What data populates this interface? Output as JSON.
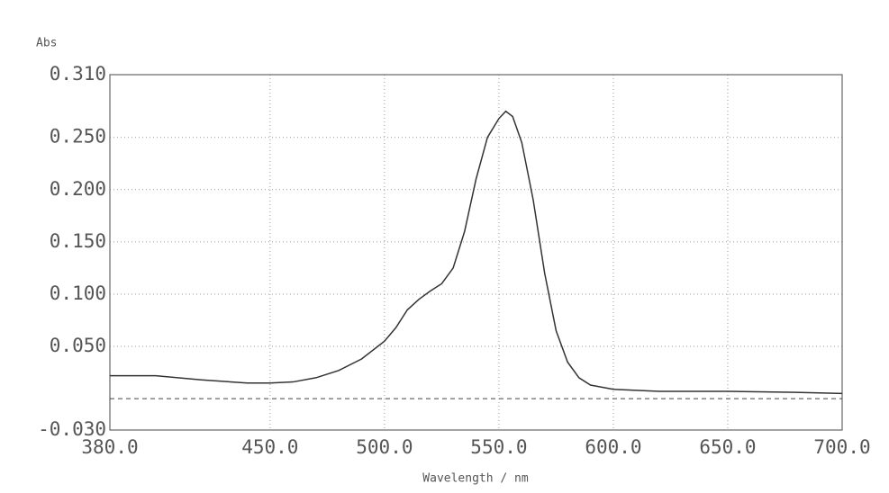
{
  "chart_data": {
    "type": "line",
    "y_label": "Abs",
    "x_label": "Wavelength / nm",
    "xlim": [
      380,
      700
    ],
    "xticks": [
      {
        "value": 380,
        "label": "380.0"
      },
      {
        "value": 450,
        "label": "450.0"
      },
      {
        "value": 500,
        "label": "500.0"
      },
      {
        "value": 550,
        "label": "550.0"
      },
      {
        "value": 600,
        "label": "600.0"
      },
      {
        "value": 650,
        "label": "650.0"
      },
      {
        "value": 700,
        "label": "700.0"
      }
    ],
    "ylim": [
      -0.03,
      0.31
    ],
    "yticks": [
      {
        "value": -0.03,
        "label": "-0.030"
      },
      {
        "value": 0.05,
        "label": "0.050"
      },
      {
        "value": 0.1,
        "label": "0.100"
      },
      {
        "value": 0.15,
        "label": "0.150"
      },
      {
        "value": 0.2,
        "label": "0.200"
      },
      {
        "value": 0.25,
        "label": "0.250"
      },
      {
        "value": 0.31,
        "label": "0.310"
      }
    ],
    "grid": true,
    "reference_line": 0,
    "color": "#333333",
    "x": [
      380,
      400,
      420,
      440,
      450,
      460,
      470,
      480,
      490,
      500,
      505,
      510,
      515,
      520,
      525,
      530,
      535,
      540,
      545,
      550,
      553,
      556,
      560,
      565,
      570,
      575,
      580,
      585,
      590,
      600,
      620,
      650,
      680,
      700
    ],
    "values": [
      0.022,
      0.022,
      0.018,
      0.015,
      0.015,
      0.016,
      0.02,
      0.027,
      0.038,
      0.055,
      0.068,
      0.085,
      0.095,
      0.103,
      0.11,
      0.125,
      0.16,
      0.21,
      0.25,
      0.268,
      0.275,
      0.27,
      0.245,
      0.19,
      0.12,
      0.065,
      0.035,
      0.02,
      0.013,
      0.009,
      0.007,
      0.007,
      0.006,
      0.005
    ]
  }
}
